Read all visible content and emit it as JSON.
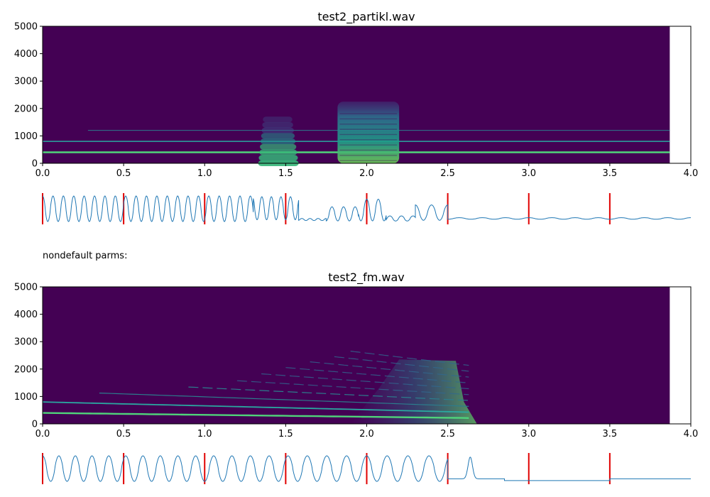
{
  "chart_data": [
    {
      "type": "heatmap",
      "title": "test2_partikl.wav",
      "xlim": [
        0,
        4.0
      ],
      "ylim": [
        0,
        5000
      ],
      "x_ticks": [
        "0.0",
        "0.5",
        "1.0",
        "1.5",
        "2.0",
        "2.5",
        "3.0",
        "3.5",
        "4.0"
      ],
      "y_ticks": [
        "0",
        "1000",
        "2000",
        "3000",
        "4000",
        "5000"
      ],
      "data_extent_x": 3.87,
      "background": "#440154",
      "lines": [
        {
          "freq": 400,
          "from": 0.0,
          "to": 3.87,
          "color": "#4fd47a",
          "width": 2.5
        },
        {
          "freq": 800,
          "from": 0.0,
          "to": 3.87,
          "color": "#2aa8a0",
          "width": 1.6
        },
        {
          "freq": 1200,
          "from": 0.28,
          "to": 3.87,
          "color": "#2c7c8c",
          "width": 1.0
        }
      ],
      "blobs": [
        {
          "x0": 1.33,
          "x1": 1.58,
          "fmax": 1650,
          "step": 200,
          "style": "ribbed"
        },
        {
          "x0": 1.82,
          "x1": 2.2,
          "fmax": 2250,
          "style": "dense"
        }
      ]
    },
    {
      "type": "line",
      "subtype": "waveform",
      "xlim": [
        0,
        4.0
      ],
      "markers": [
        0.0,
        0.5,
        1.0,
        1.5,
        2.0,
        2.5,
        3.0,
        3.5
      ],
      "marker_color": "#e00000",
      "line_color": "#1f77b4",
      "segments": [
        {
          "x0": 0.0,
          "x1": 1.3,
          "freq": 15.6,
          "amp": 1.0,
          "level": 0.5
        },
        {
          "x0": 1.3,
          "x1": 1.58,
          "freq": 17.0,
          "amp": 0.9,
          "level": 0.52
        },
        {
          "x0": 1.58,
          "x1": 1.75,
          "freq": 20.0,
          "amp": 0.08,
          "level": 0.08
        },
        {
          "x0": 1.75,
          "x1": 1.95,
          "freq": 14.0,
          "amp": 0.55,
          "level": 0.3
        },
        {
          "x0": 1.95,
          "x1": 2.12,
          "freq": 14.0,
          "amp": 0.85,
          "level": 0.45
        },
        {
          "x0": 2.12,
          "x1": 2.3,
          "freq": 14.0,
          "amp": 0.2,
          "level": 0.12
        },
        {
          "x0": 2.3,
          "x1": 2.5,
          "freq": 10.0,
          "amp": 0.6,
          "level": 0.35
        },
        {
          "x0": 2.5,
          "x1": 4.0,
          "freq": 7.0,
          "amp": 0.06,
          "level": 0.12
        }
      ]
    },
    {
      "type": "heatmap",
      "title": "test2_fm.wav",
      "xlim": [
        0,
        4.0
      ],
      "ylim": [
        0,
        5000
      ],
      "x_ticks": [
        "0.0",
        "0.5",
        "1.0",
        "1.5",
        "2.0",
        "2.5",
        "3.0",
        "3.5",
        "4.0"
      ],
      "y_ticks": [
        "0",
        "1000",
        "2000",
        "3000",
        "4000",
        "5000"
      ],
      "data_extent_x": 3.87,
      "background": "#440154",
      "harmonics": [
        {
          "k": 1,
          "start": 0.0
        },
        {
          "k": 2,
          "start": 0.0
        },
        {
          "k": 3,
          "start": 0.35
        },
        {
          "k": 4,
          "start": 0.9
        },
        {
          "k": 5,
          "start": 1.2
        },
        {
          "k": 6,
          "start": 1.35
        },
        {
          "k": 7,
          "start": 1.5
        },
        {
          "k": 8,
          "start": 1.65
        },
        {
          "k": 9,
          "start": 1.8
        },
        {
          "k": 10,
          "start": 1.9
        }
      ],
      "f0_start": 400,
      "f0_end": 210,
      "cutoff": 2.68
    },
    {
      "type": "line",
      "subtype": "waveform",
      "xlim": [
        0,
        4.0
      ],
      "markers": [
        0.0,
        0.5,
        1.0,
        1.5,
        2.0,
        2.5,
        3.0,
        3.5
      ],
      "marker_color": "#e00000",
      "line_color": "#1f77b4",
      "segments": [
        {
          "x0": 0.0,
          "x1": 2.5,
          "freq": 10.0,
          "amp": 1.0,
          "level": 0.5,
          "chirp": -0.5
        },
        {
          "x0": 2.5,
          "x1": 2.85,
          "freq": 3.6,
          "amp": 1.0,
          "level": 0.1,
          "pulse": true
        },
        {
          "x0": 2.85,
          "x1": 3.5,
          "freq": 0,
          "amp": 0,
          "level": 0.03
        },
        {
          "x0": 3.5,
          "x1": 4.0,
          "freq": 0,
          "amp": 0,
          "level": 0.1
        }
      ]
    }
  ],
  "note": "nondefault parms:"
}
